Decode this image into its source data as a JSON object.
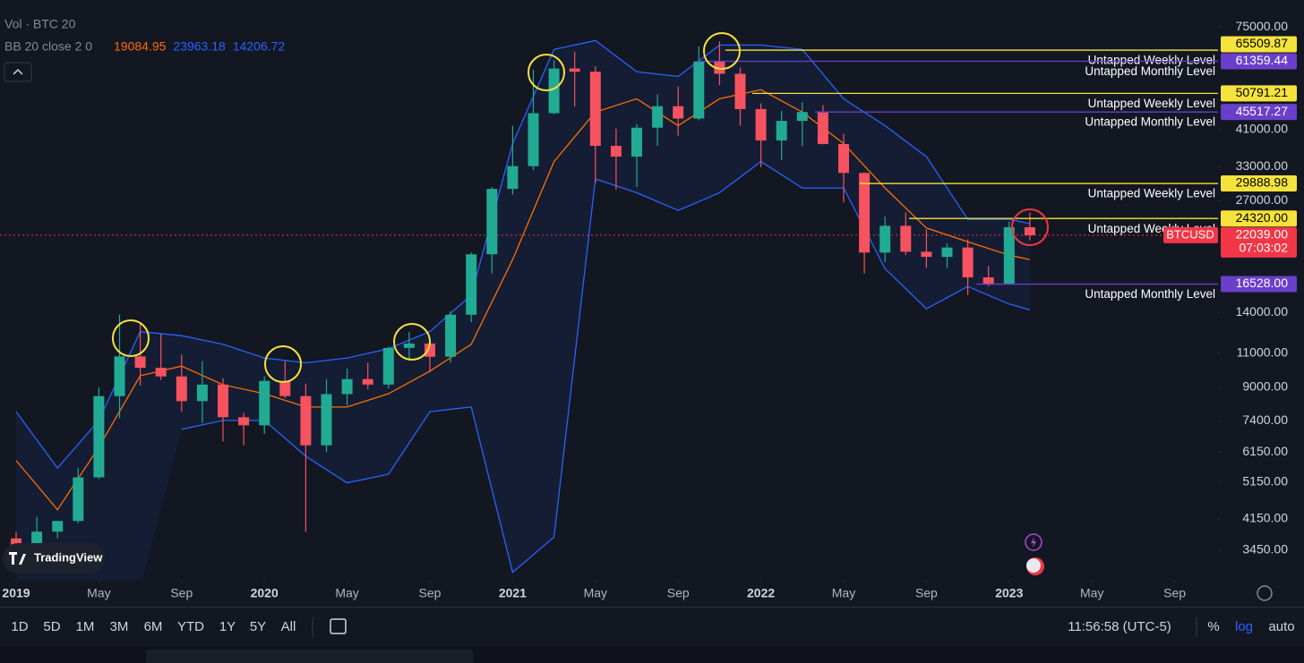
{
  "chart_data": {
    "type": "candlestick",
    "log": true,
    "ylim": [
      2900,
      88000
    ],
    "yticks": [
      {
        "value": 75000,
        "label": "75000.00"
      },
      {
        "value": 41000,
        "label": "41000.00"
      },
      {
        "value": 33000,
        "label": "33000.00"
      },
      {
        "value": 27000,
        "label": "27000.00"
      },
      {
        "value": 14000,
        "label": "14000.00"
      },
      {
        "value": 11000,
        "label": "11000.00"
      },
      {
        "value": 9000,
        "label": "9000.00"
      },
      {
        "value": 7400,
        "label": "7400.00"
      },
      {
        "value": 6150,
        "label": "6150.00"
      },
      {
        "value": 5150,
        "label": "5150.00"
      },
      {
        "value": 4150,
        "label": "4150.00"
      },
      {
        "value": 3450,
        "label": "3450.00"
      }
    ],
    "xticks": [
      {
        "value": "2019-01",
        "label": "2019"
      },
      {
        "value": "2019-05",
        "label": "May"
      },
      {
        "value": "2019-09",
        "label": "Sep"
      },
      {
        "value": "2020-01",
        "label": "2020"
      },
      {
        "value": "2020-05",
        "label": "May"
      },
      {
        "value": "2020-09",
        "label": "Sep"
      },
      {
        "value": "2021-01",
        "label": "2021"
      },
      {
        "value": "2021-05",
        "label": "May"
      },
      {
        "value": "2021-09",
        "label": "Sep"
      },
      {
        "value": "2022-01",
        "label": "2022"
      },
      {
        "value": "2022-05",
        "label": "May"
      },
      {
        "value": "2022-09",
        "label": "Sep"
      },
      {
        "value": "2023-01",
        "label": "2023"
      },
      {
        "value": "2023-05",
        "label": "May"
      },
      {
        "value": "2023-09",
        "label": "Sep"
      }
    ],
    "x": [
      "2019-01",
      "2019-02",
      "2019-03",
      "2019-04",
      "2019-05",
      "2019-06",
      "2019-07",
      "2019-08",
      "2019-09",
      "2019-10",
      "2019-11",
      "2019-12",
      "2020-01",
      "2020-02",
      "2020-03",
      "2020-04",
      "2020-05",
      "2020-06",
      "2020-07",
      "2020-08",
      "2020-09",
      "2020-10",
      "2020-11",
      "2020-12",
      "2021-01",
      "2021-02",
      "2021-03",
      "2021-04",
      "2021-05",
      "2021-06",
      "2021-07",
      "2021-08",
      "2021-09",
      "2021-10",
      "2021-11",
      "2021-12",
      "2022-01",
      "2022-02",
      "2022-03",
      "2022-04",
      "2022-05",
      "2022-06",
      "2022-07",
      "2022-08",
      "2022-09",
      "2022-10",
      "2022-11",
      "2022-12",
      "2023-01",
      "2023-02"
    ],
    "series": [
      {
        "name": "BTCUSD",
        "up_color": "#22ab94",
        "down_color": "#f7525f",
        "open": [
          3700,
          3450,
          3850,
          4100,
          5300,
          8550,
          10800,
          10100,
          9600,
          8300,
          9150,
          7550,
          7200,
          9350,
          8550,
          6400,
          8650,
          9450,
          9150,
          11350,
          11650,
          10780,
          13800,
          19700,
          28950,
          33100,
          45200,
          58800,
          57700,
          37300,
          35000,
          41500,
          47100,
          43800,
          61300,
          57000,
          46300,
          38500,
          43200,
          45500,
          37700,
          31800,
          19900,
          23300,
          20000,
          19400,
          20500,
          17200,
          16550,
          23100
        ],
        "high": [
          3850,
          4200,
          4100,
          5600,
          9000,
          13800,
          13200,
          12300,
          10900,
          10500,
          9500,
          7750,
          9600,
          10500,
          9200,
          9450,
          10050,
          10400,
          11450,
          12480,
          12050,
          14100,
          19900,
          29300,
          41950,
          58400,
          61800,
          64900,
          59600,
          41300,
          42400,
          50500,
          52900,
          67000,
          69000,
          59100,
          47900,
          45800,
          48200,
          47400,
          40000,
          31900,
          24600,
          25200,
          22800,
          21000,
          21500,
          18400,
          23900,
          25200
        ],
        "low": [
          3350,
          3400,
          3700,
          4050,
          5250,
          7500,
          9100,
          9400,
          7800,
          7300,
          6550,
          6400,
          6850,
          8450,
          3850,
          6150,
          8100,
          8900,
          8950,
          10550,
          9850,
          10400,
          13200,
          17600,
          28000,
          32300,
          44900,
          47000,
          30000,
          28800,
          29300,
          37300,
          39600,
          43300,
          53300,
          42000,
          32900,
          34300,
          37200,
          37600,
          26700,
          17600,
          18800,
          19600,
          18200,
          18200,
          15500,
          16300,
          16500,
          21400
        ],
        "close": [
          3450,
          3850,
          4100,
          5300,
          8550,
          10800,
          10100,
          9600,
          8300,
          9150,
          7550,
          7200,
          9350,
          8550,
          6400,
          8650,
          9450,
          9150,
          11350,
          11650,
          10780,
          13800,
          19700,
          28950,
          33100,
          45200,
          58800,
          57700,
          37300,
          35000,
          41500,
          47100,
          43800,
          61300,
          57000,
          46300,
          38500,
          43200,
          45500,
          37700,
          31800,
          19900,
          23300,
          20000,
          19400,
          20500,
          17200,
          16550,
          23100,
          22039
        ]
      }
    ],
    "bands": {
      "x": [
        "2019-01",
        "2019-03",
        "2019-05",
        "2019-07",
        "2019-09",
        "2019-11",
        "2020-01",
        "2020-03",
        "2020-05",
        "2020-07",
        "2020-09",
        "2020-11",
        "2021-01",
        "2021-03",
        "2021-05",
        "2021-07",
        "2021-09",
        "2021-11",
        "2022-01",
        "2022-03",
        "2022-05",
        "2022-07",
        "2022-09",
        "2022-11",
        "2023-01",
        "2023-02"
      ],
      "series": [
        {
          "color": "#2962ff",
          "values": [
            7800,
            5600,
            7410,
            12500,
            12200,
            11600,
            10700,
            10400,
            10700,
            11300,
            12500,
            15500,
            37800,
            65800,
            69300,
            57700,
            56100,
            67500,
            67500,
            65800,
            49200,
            42000,
            35000,
            24200,
            24200,
            23600
          ]
        },
        {
          "color": "#ff6d00",
          "values": [
            5850,
            4380,
            6330,
            9640,
            10200,
            9140,
            8670,
            8020,
            8020,
            8670,
            9900,
            11600,
            19100,
            34000,
            45500,
            49200,
            42000,
            49200,
            51900,
            45500,
            37800,
            29100,
            23000,
            21200,
            19600,
            19100
          ]
        },
        {
          "color": "#2962ff",
          "values": [
            null,
            null,
            null,
            null,
            7030,
            7410,
            7410,
            6000,
            5130,
            5400,
            7800,
            8020,
            3030,
            3730,
            30700,
            28300,
            25500,
            28300,
            34000,
            29100,
            29100,
            18100,
            14300,
            16300,
            14700,
            14200
          ]
        }
      ]
    },
    "levels": [
      {
        "name": "Untapped Weekly Level",
        "value": 65509.87,
        "color": "#f5e33b",
        "text_color": "#000000"
      },
      {
        "name": "Untapped Monthly Level",
        "value": 61359.44,
        "color": "#6a3fc9",
        "text_color": "#ffffff"
      },
      {
        "name": "Untapped Weekly Level",
        "value": 50791.21,
        "color": "#f5e33b",
        "text_color": "#000000"
      },
      {
        "name": "Untapped Monthly Level",
        "value": 45517.27,
        "color": "#6a3fc9",
        "text_color": "#ffffff"
      },
      {
        "name": "Untapped Weekly Level",
        "value": 29888.98,
        "color": "#f5e33b",
        "text_color": "#000000"
      },
      {
        "name": "Untapped Weekly Level",
        "value": 24320,
        "value_label": "24320.00",
        "color": "#f5e33b",
        "text_color": "#000000"
      },
      {
        "name": "Untapped Monthly Level",
        "value": 16528,
        "value_label": "16528.00",
        "color": "#6a3fc9",
        "text_color": "#ffffff"
      }
    ],
    "current": {
      "name": "BTCUSD",
      "value": 22039,
      "value_label": "22039.00",
      "countdown": "07:03:02",
      "color": "#f23645"
    },
    "indicators": {
      "volume": "Vol · BTC 20",
      "bb_label": "BB 20 close 2 0",
      "bb_values": [
        19084.95,
        23963.18,
        14206.72
      ],
      "bb_colors": [
        "#ff6d00",
        "#2962ff",
        "#2962ff"
      ]
    }
  },
  "ui": {
    "logo": "TradingView",
    "timeframes": [
      "1D",
      "5D",
      "1M",
      "3M",
      "6M",
      "YTD",
      "1Y",
      "5Y",
      "All"
    ],
    "clock": "11:56:58 (UTC-5)",
    "scale_buttons": [
      "%",
      "log",
      "auto"
    ]
  }
}
